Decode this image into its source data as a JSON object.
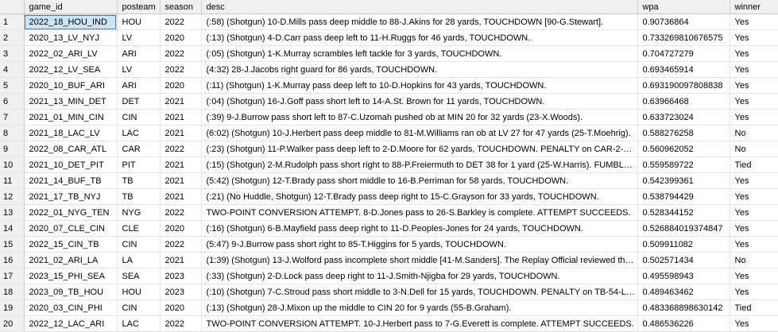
{
  "grid": {
    "columns": [
      "",
      "game_id",
      "posteam",
      "season",
      "desc",
      "wpa",
      "winner"
    ],
    "rows": [
      {
        "n": "1",
        "game_id": "2022_18_HOU_IND",
        "posteam": "HOU",
        "season": "2022",
        "desc": "(:58) (Shotgun) 10-D.Mills pass deep middle to 88-J.Akins for 28 yards, TOUCHDOWN [90-G.Stewart].",
        "wpa": "0.90736864",
        "winner": "Yes"
      },
      {
        "n": "2",
        "game_id": "2020_13_LV_NYJ",
        "posteam": "LV",
        "season": "2020",
        "desc": "(:13) (Shotgun) 4-D.Carr pass deep left to 11-H.Ruggs for 46 yards, TOUCHDOWN.",
        "wpa": "0.733269810676575",
        "winner": "Yes"
      },
      {
        "n": "3",
        "game_id": "2022_02_ARI_LV",
        "posteam": "ARI",
        "season": "2022",
        "desc": "(:05) (Shotgun) 1-K.Murray scrambles left tackle for 3 yards, TOUCHDOWN.",
        "wpa": "0.704727279",
        "winner": "Yes"
      },
      {
        "n": "4",
        "game_id": "2022_12_LV_SEA",
        "posteam": "LV",
        "season": "2022",
        "desc": "(4:32) 28-J.Jacobs right guard for 86 yards, TOUCHDOWN.",
        "wpa": "0.693465914",
        "winner": "Yes"
      },
      {
        "n": "5",
        "game_id": "2020_10_BUF_ARI",
        "posteam": "ARI",
        "season": "2020",
        "desc": "(:11) (Shotgun) 1-K.Murray pass deep left to 10-D.Hopkins for 43 yards, TOUCHDOWN.",
        "wpa": "0.693190097808838",
        "winner": "Yes"
      },
      {
        "n": "6",
        "game_id": "2021_13_MIN_DET",
        "posteam": "DET",
        "season": "2021",
        "desc": "(:04) (Shotgun) 16-J.Goff pass short left to 14-A.St. Brown for 11 yards, TOUCHDOWN.",
        "wpa": "0.63966468",
        "winner": "Yes"
      },
      {
        "n": "7",
        "game_id": "2021_01_MIN_CIN",
        "posteam": "CIN",
        "season": "2021",
        "desc": "(:39) 9-J.Burrow pass short left to 87-C.Uzomah pushed ob at MIN 20 for 32 yards (23-X.Woods).",
        "wpa": "0.633723024",
        "winner": "Yes"
      },
      {
        "n": "8",
        "game_id": "2021_18_LAC_LV",
        "posteam": "LAC",
        "season": "2021",
        "desc": "(6:02) (Shotgun) 10-J.Herbert pass deep middle to 81-M.Williams ran ob at LV 27 for 47 yards (25-T.Moehrig).",
        "wpa": "0.588276258",
        "winner": "No"
      },
      {
        "n": "9",
        "game_id": "2022_08_CAR_ATL",
        "posteam": "CAR",
        "season": "2022",
        "desc": "(:23) (Shotgun) 11-P.Walker pass deep left to 2-D.Moore for 62 yards, TOUCHDOWN.  PENALTY on CAR-2-D....",
        "wpa": "0.560962052",
        "winner": "No"
      },
      {
        "n": "10",
        "game_id": "2021_10_DET_PIT",
        "posteam": "PIT",
        "season": "2021",
        "desc": "(:15) (Shotgun) 2-M.Rudolph pass short right to 88-P.Freiermuth to DET 38 for 1 yard (25-W.Harris). FUMBLES (...",
        "wpa": "0.559589722",
        "winner": "Tied"
      },
      {
        "n": "11",
        "game_id": "2021_14_BUF_TB",
        "posteam": "TB",
        "season": "2021",
        "desc": "(5:42) (Shotgun) 12-T.Brady pass short middle to 16-B.Perriman for 58 yards, TOUCHDOWN.",
        "wpa": "0.542399361",
        "winner": "Yes"
      },
      {
        "n": "12",
        "game_id": "2021_17_TB_NYJ",
        "posteam": "TB",
        "season": "2021",
        "desc": "(:21) (No Huddle, Shotgun) 12-T.Brady pass deep right to 15-C.Grayson for 33 yards, TOUCHDOWN.",
        "wpa": "0.538794429",
        "winner": "Yes"
      },
      {
        "n": "13",
        "game_id": "2022_01_NYG_TEN",
        "posteam": "NYG",
        "season": "2022",
        "desc": "TWO-POINT CONVERSION ATTEMPT. 8-D.Jones pass to 26-S.Barkley is complete. ATTEMPT SUCCEEDS.",
        "wpa": "0.528344152",
        "winner": "Yes"
      },
      {
        "n": "14",
        "game_id": "2020_07_CLE_CIN",
        "posteam": "CLE",
        "season": "2020",
        "desc": "(:16) (Shotgun) 6-B.Mayfield pass deep right to 11-D.Peoples-Jones for 24 yards, TOUCHDOWN.",
        "wpa": "0.526884019374847",
        "winner": "Yes"
      },
      {
        "n": "15",
        "game_id": "2022_15_CIN_TB",
        "posteam": "CIN",
        "season": "2022",
        "desc": "(5:47) 9-J.Burrow pass short right to 85-T.Higgins for 5 yards, TOUCHDOWN.",
        "wpa": "0.509911082",
        "winner": "Yes"
      },
      {
        "n": "16",
        "game_id": "2021_02_ARI_LA",
        "posteam": "LA",
        "season": "2021",
        "desc": "(1:39) (Shotgun) 13-J.Wolford pass incomplete short middle [41-M.Sanders].  The Replay Official reviewed the in...",
        "wpa": "0.502571434",
        "winner": "No"
      },
      {
        "n": "17",
        "game_id": "2023_15_PHI_SEA",
        "posteam": "SEA",
        "season": "2023",
        "desc": "(:33) (Shotgun) 2-D.Lock pass deep right to 11-J.Smith-Njigba for 29 yards, TOUCHDOWN.",
        "wpa": "0.495598943",
        "winner": "Yes"
      },
      {
        "n": "18",
        "game_id": "2023_09_TB_HOU",
        "posteam": "HOU",
        "season": "2023",
        "desc": "(:10) (Shotgun) 7-C.Stroud pass short middle to 3-N.Dell for 15 yards, TOUCHDOWN.  PENALTY on TB-54-L.D....",
        "wpa": "0.489463462",
        "winner": "Yes"
      },
      {
        "n": "19",
        "game_id": "2020_03_CIN_PHI",
        "posteam": "CIN",
        "season": "2020",
        "desc": "(:13) (Shotgun) 28-J.Mixon up the middle to CIN 20 for 9 yards (55-B.Graham).",
        "wpa": "0.483368898630142",
        "winner": "Tied"
      },
      {
        "n": "20",
        "game_id": "2022_12_LAC_ARI",
        "posteam": "LAC",
        "season": "2022",
        "desc": "TWO-POINT CONVERSION ATTEMPT. 10-J.Herbert pass to 7-G.Everett is complete. ATTEMPT SUCCEEDS.",
        "wpa": "0.486536226",
        "winner": "Yes"
      }
    ]
  }
}
